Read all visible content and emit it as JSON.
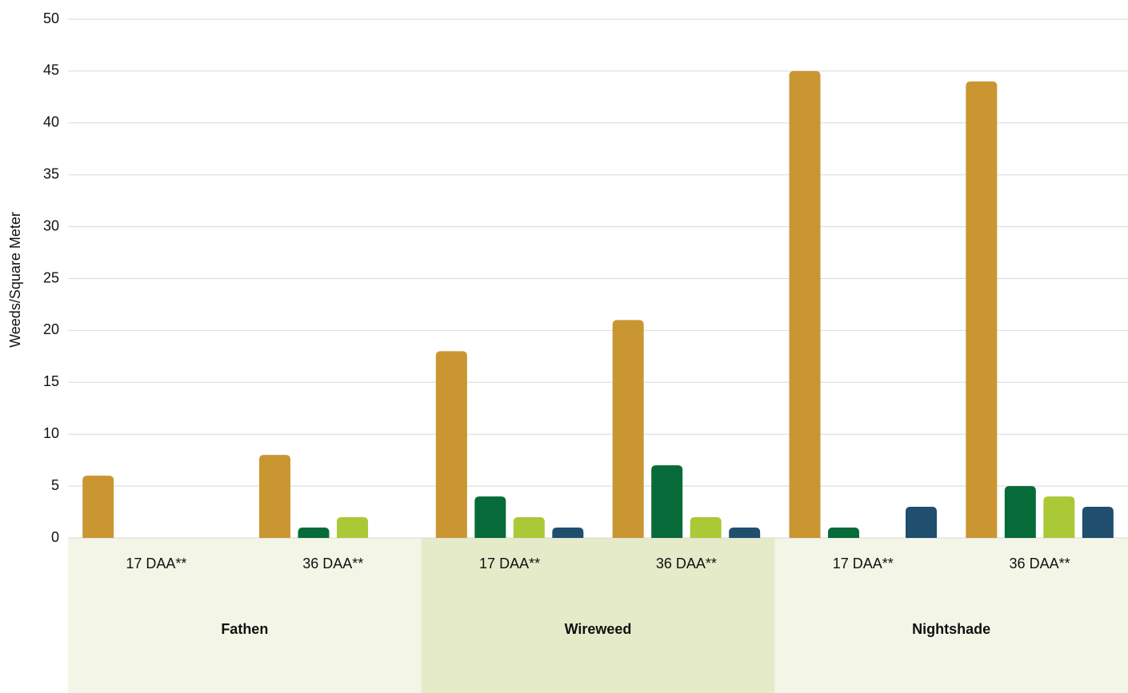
{
  "chart_data": {
    "type": "bar",
    "y_label": "Weeds/Square Meter",
    "categories": [
      "17 DAA**",
      "36 DAA**",
      "17 DAA**",
      "36 DAA**",
      "17 DAA**",
      "36 DAA**"
    ],
    "groups": [
      "Fathen",
      "Wireweed",
      "Nightshade"
    ],
    "group_colors": [
      "#f3f5e6",
      "#e5ebc9",
      "#f3f5e6"
    ],
    "series": [
      {
        "color": "#c99632",
        "values": [
          6,
          8,
          18,
          21,
          45,
          44
        ]
      },
      {
        "color": "#066b38",
        "values": [
          0,
          1,
          4,
          7,
          1,
          5
        ]
      },
      {
        "color": "#abc837",
        "values": [
          0,
          2,
          2,
          2,
          0,
          4
        ]
      },
      {
        "color": "#1f4e6e",
        "values": [
          0,
          0,
          1,
          1,
          3,
          3
        ]
      }
    ],
    "ylim": [
      0,
      50
    ],
    "yticks": [
      0,
      5,
      10,
      15,
      20,
      25,
      30,
      35,
      40,
      45,
      50
    ],
    "grid": true
  }
}
